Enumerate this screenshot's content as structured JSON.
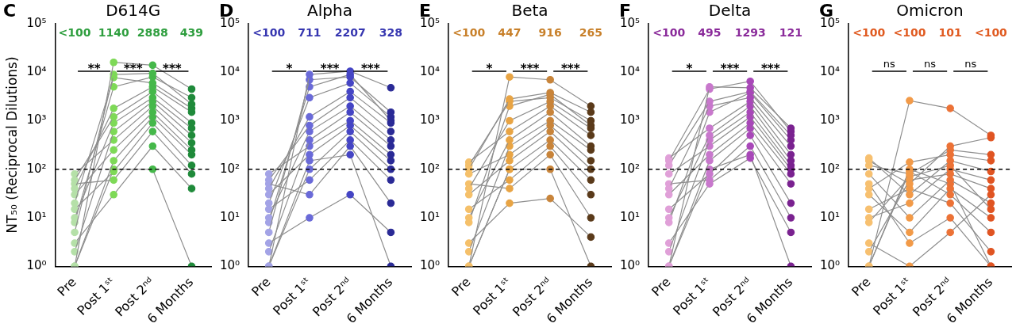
{
  "chart_data": [
    {
      "type": "line",
      "panel": "C",
      "title": "D614G",
      "ylabel": "NT₅₀ (Reciprocal Dilutions)",
      "categories": [
        "Pre",
        "Post 1ˢᵗ",
        "Post 2ⁿᵈ",
        "6 Months"
      ],
      "donors": [
        [
          1,
          16000,
          14000,
          4500
        ],
        [
          5,
          9000,
          9500,
          2200
        ],
        [
          20,
          7800,
          6000,
          1800
        ],
        [
          40,
          1800,
          5000,
          1500
        ],
        [
          60,
          1200,
          4000,
          900
        ],
        [
          10,
          900,
          3000,
          700
        ],
        [
          2,
          600,
          2500,
          500
        ],
        [
          80,
          400,
          2000,
          350
        ],
        [
          30,
          250,
          1500,
          250
        ],
        [
          1,
          150,
          1200,
          200
        ],
        [
          15,
          90,
          900,
          120
        ],
        [
          50,
          60,
          600,
          80
        ],
        [
          3,
          30,
          300,
          40
        ],
        [
          8,
          5000,
          8000,
          3000
        ],
        [
          1,
          100,
          100,
          1
        ]
      ],
      "colors": [
        "#b5e0a8",
        "#7ed957",
        "#45b84a",
        "#1f8a3a"
      ],
      "color": "#2e9e3e",
      "summary_labels": [
        "<100",
        "1140",
        "2888",
        "439"
      ],
      "comparisons": [
        {
          "from": "Pre",
          "to": "Post 1ˢᵗ",
          "label": "**"
        },
        {
          "from": "Post 1ˢᵗ",
          "to": "Post 2ⁿᵈ",
          "label": "***"
        },
        {
          "from": "Post 2ⁿᵈ",
          "to": "6 Months",
          "label": "***"
        }
      ],
      "reference_line": 100,
      "log": "y",
      "ylim": [
        1,
        100000
      ],
      "yticks": [
        {
          "value": 1,
          "label": "10⁰"
        },
        {
          "value": 10,
          "label": "10¹"
        },
        {
          "value": 100,
          "label": "10²"
        },
        {
          "value": 1000,
          "label": "10³"
        },
        {
          "value": 10000,
          "label": "10⁴"
        },
        {
          "value": 100000,
          "label": "10⁵"
        }
      ],
      "marker": "circle",
      "line_style": "solid",
      "grid": false
    },
    {
      "type": "line",
      "panel": "D",
      "title": "Alpha",
      "categories": [
        "Pre",
        "Post 1ˢᵗ",
        "Post 2ⁿᵈ",
        "6 Months"
      ],
      "donors": [
        [
          1,
          9000,
          10500,
          4800
        ],
        [
          5,
          7000,
          8000,
          1500
        ],
        [
          20,
          3000,
          6000,
          1200
        ],
        [
          40,
          1200,
          4000,
          900
        ],
        [
          60,
          800,
          3000,
          600
        ],
        [
          10,
          600,
          2000,
          400
        ],
        [
          2,
          400,
          1500,
          300
        ],
        [
          80,
          300,
          1000,
          200
        ],
        [
          30,
          200,
          800,
          150
        ],
        [
          1,
          100,
          600,
          100
        ],
        [
          15,
          60,
          400,
          60
        ],
        [
          50,
          30,
          300,
          20
        ],
        [
          3,
          10,
          30,
          5
        ],
        [
          8,
          5000,
          9000,
          1000
        ],
        [
          1,
          150,
          200,
          1
        ]
      ],
      "colors": [
        "#a3a3e6",
        "#6a6ad8",
        "#4545c4",
        "#2a2a96"
      ],
      "color": "#3636b0",
      "summary_labels": [
        "<100",
        "711",
        "2207",
        "328"
      ],
      "comparisons": [
        {
          "from": "Pre",
          "to": "Post 1ˢᵗ",
          "label": "*"
        },
        {
          "from": "Post 1ˢᵗ",
          "to": "Post 2ⁿᵈ",
          "label": "***"
        },
        {
          "from": "Post 2ⁿᵈ",
          "to": "6 Months",
          "label": "***"
        }
      ],
      "reference_line": 100,
      "log": "y",
      "ylim": [
        1,
        100000
      ],
      "yticks": [
        {
          "value": 1,
          "label": "10⁰"
        },
        {
          "value": 10,
          "label": "10¹"
        },
        {
          "value": 100,
          "label": "10²"
        },
        {
          "value": 1000,
          "label": "10³"
        },
        {
          "value": 10000,
          "label": "10⁴"
        },
        {
          "value": 100000,
          "label": "10⁵"
        }
      ],
      "marker": "circle",
      "line_style": "solid",
      "grid": false
    },
    {
      "type": "line",
      "panel": "E",
      "title": "Beta",
      "categories": [
        "Pre",
        "Post 1ˢᵗ",
        "Post 2ⁿᵈ",
        "6 Months"
      ],
      "donors": [
        [
          1,
          8000,
          7000,
          2000
        ],
        [
          100,
          2800,
          3800,
          1500
        ],
        [
          120,
          2500,
          3000,
          1000
        ],
        [
          40,
          1000,
          2500,
          700
        ],
        [
          140,
          600,
          2000,
          500
        ],
        [
          10,
          400,
          1500,
          300
        ],
        [
          2,
          300,
          1000,
          250
        ],
        [
          80,
          200,
          800,
          150
        ],
        [
          30,
          150,
          600,
          100
        ],
        [
          1,
          100,
          400,
          60
        ],
        [
          15,
          60,
          300,
          30
        ],
        [
          50,
          40,
          200,
          10
        ],
        [
          3,
          20,
          25,
          4
        ],
        [
          8,
          2000,
          3500,
          800
        ],
        [
          1,
          100,
          100,
          1
        ]
      ],
      "colors": [
        "#f5c06a",
        "#e8a444",
        "#c8843a",
        "#5a3a1a"
      ],
      "color": "#c8802a",
      "summary_labels": [
        "<100",
        "447",
        "916",
        "265"
      ],
      "comparisons": [
        {
          "from": "Pre",
          "to": "Post 1ˢᵗ",
          "label": "*"
        },
        {
          "from": "Post 1ˢᵗ",
          "to": "Post 2ⁿᵈ",
          "label": "***"
        },
        {
          "from": "Post 2ⁿᵈ",
          "to": "6 Months",
          "label": "***"
        }
      ],
      "reference_line": 100,
      "log": "y",
      "ylim": [
        1,
        100000
      ],
      "yticks": [
        {
          "value": 1,
          "label": "10⁰"
        },
        {
          "value": 10,
          "label": "10¹"
        },
        {
          "value": 100,
          "label": "10²"
        },
        {
          "value": 1000,
          "label": "10³"
        },
        {
          "value": 10000,
          "label": "10⁴"
        },
        {
          "value": 100000,
          "label": "10⁵"
        }
      ],
      "marker": "circle",
      "line_style": "solid",
      "grid": false
    },
    {
      "type": "line",
      "panel": "F",
      "title": "Delta",
      "categories": [
        "Pre",
        "Post 1ˢᵗ",
        "Post 2ⁿᵈ",
        "6 Months"
      ],
      "donors": [
        [
          1,
          5000,
          4800,
          700
        ],
        [
          150,
          4500,
          6500,
          600
        ],
        [
          120,
          2500,
          4000,
          500
        ],
        [
          40,
          2000,
          3000,
          300
        ],
        [
          170,
          700,
          2500,
          200
        ],
        [
          10,
          500,
          2000,
          150
        ],
        [
          2,
          400,
          1500,
          120
        ],
        [
          80,
          300,
          1200,
          100
        ],
        [
          30,
          200,
          900,
          80
        ],
        [
          1,
          150,
          700,
          50
        ],
        [
          15,
          80,
          500,
          20
        ],
        [
          50,
          60,
          300,
          10
        ],
        [
          3,
          50,
          170,
          5
        ],
        [
          8,
          1500,
          3800,
          400
        ],
        [
          1,
          100,
          200,
          1
        ]
      ],
      "colors": [
        "#e0a0d8",
        "#c878cc",
        "#a848b8",
        "#7a2290"
      ],
      "color": "#8a2a9a",
      "summary_labels": [
        "<100",
        "495",
        "1293",
        "121"
      ],
      "comparisons": [
        {
          "from": "Pre",
          "to": "Post 1ˢᵗ",
          "label": "*"
        },
        {
          "from": "Post 1ˢᵗ",
          "to": "Post 2ⁿᵈ",
          "label": "***"
        },
        {
          "from": "Post 2ⁿᵈ",
          "to": "6 Months",
          "label": "***"
        }
      ],
      "reference_line": 100,
      "log": "y",
      "ylim": [
        1,
        100000
      ],
      "yticks": [
        {
          "value": 1,
          "label": "10⁰"
        },
        {
          "value": 10,
          "label": "10¹"
        },
        {
          "value": 100,
          "label": "10²"
        },
        {
          "value": 1000,
          "label": "10³"
        },
        {
          "value": 10000,
          "label": "10⁴"
        },
        {
          "value": 100000,
          "label": "10⁵"
        }
      ],
      "marker": "circle",
      "line_style": "solid",
      "grid": false
    },
    {
      "type": "line",
      "panel": "G",
      "title": "Omicron",
      "categories": [
        "Pre",
        "Post 1ˢᵗ",
        "Post 2ⁿᵈ",
        "6 Months"
      ],
      "donors": [
        [
          1,
          2600,
          1800,
          500
        ],
        [
          150,
          50,
          300,
          450
        ],
        [
          120,
          80,
          250,
          200
        ],
        [
          40,
          140,
          200,
          150
        ],
        [
          170,
          30,
          150,
          90
        ],
        [
          10,
          20,
          100,
          60
        ],
        [
          2,
          60,
          80,
          40
        ],
        [
          80,
          10,
          60,
          20
        ],
        [
          30,
          5,
          40,
          10
        ],
        [
          1,
          90,
          30,
          5
        ],
        [
          15,
          40,
          20,
          2
        ],
        [
          50,
          3,
          10,
          1
        ],
        [
          3,
          1,
          5,
          30
        ],
        [
          8,
          70,
          120,
          15
        ],
        [
          1,
          100,
          50,
          1
        ]
      ],
      "colors": [
        "#f7c070",
        "#f29a48",
        "#ec7236",
        "#e05422"
      ],
      "color": "#e05a20",
      "summary_labels": [
        "<100",
        "<100",
        "101",
        "<100"
      ],
      "comparisons": [
        {
          "from": "Pre",
          "to": "Post 1ˢᵗ",
          "label": "ns"
        },
        {
          "from": "Post 1ˢᵗ",
          "to": "Post 2ⁿᵈ",
          "label": "ns"
        },
        {
          "from": "Post 2ⁿᵈ",
          "to": "6 Months",
          "label": "ns"
        }
      ],
      "reference_line": 100,
      "log": "y",
      "ylim": [
        1,
        100000
      ],
      "yticks": [
        {
          "value": 1,
          "label": "10⁰"
        },
        {
          "value": 10,
          "label": "10¹"
        },
        {
          "value": 100,
          "label": "10²"
        },
        {
          "value": 1000,
          "label": "10³"
        },
        {
          "value": 10000,
          "label": "10⁴"
        },
        {
          "value": 100000,
          "label": "10⁵"
        }
      ],
      "marker": "circle",
      "line_style": "solid",
      "grid": false
    }
  ]
}
